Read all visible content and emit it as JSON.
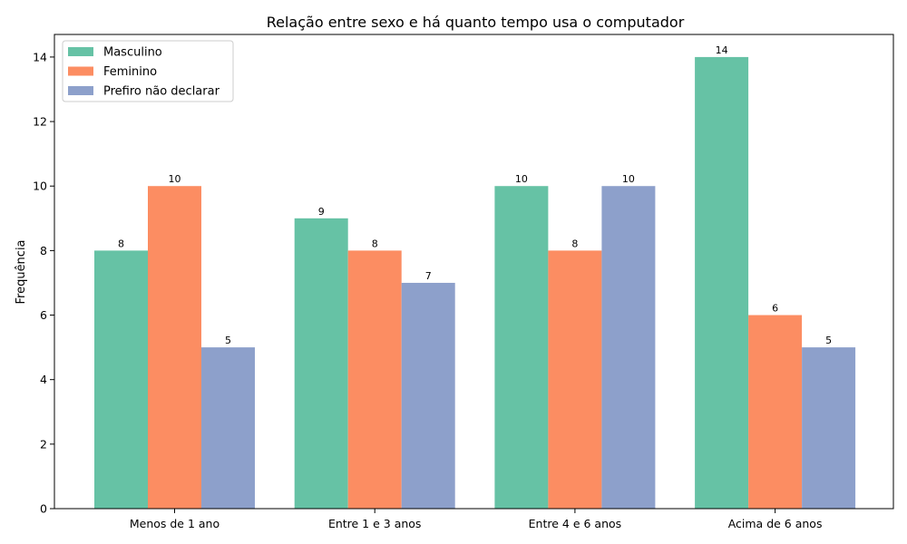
{
  "chart_data": {
    "type": "bar",
    "title": "Relação entre sexo e há quanto tempo usa o computador",
    "xlabel": "",
    "ylabel": "Frequência",
    "categories": [
      "Menos de 1 ano",
      "Entre 1 e 3 anos",
      "Entre 4 e 6 anos",
      "Acima de 6 anos"
    ],
    "series": [
      {
        "name": "Masculino",
        "values": [
          8,
          9,
          10,
          14
        ],
        "color": "#66c2a5"
      },
      {
        "name": "Feminino",
        "values": [
          10,
          8,
          8,
          6
        ],
        "color": "#fc8d62"
      },
      {
        "name": "Prefiro não declarar",
        "values": [
          5,
          7,
          10,
          5
        ],
        "color": "#8da0cb"
      }
    ],
    "ylim": [
      0,
      14.7
    ],
    "yticks": [
      0,
      2,
      4,
      6,
      8,
      10,
      12,
      14
    ],
    "grid": false,
    "legend": "top-left"
  }
}
